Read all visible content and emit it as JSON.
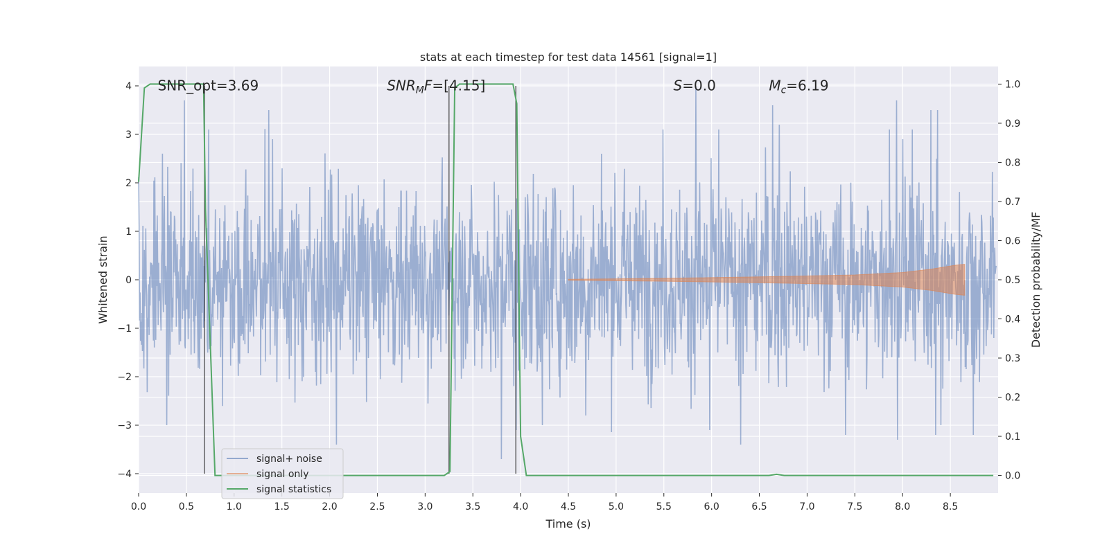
{
  "chart_data": {
    "type": "line",
    "title": "stats at each timestep for test data 14561 [signal=1]",
    "xlabel": "Time (s)",
    "ylabel": "Whitened strain",
    "y2label": "Detection probability/MF",
    "xlim": [
      0,
      9
    ],
    "ylim": [
      -4.4,
      4.4
    ],
    "y2lim": [
      -0.045,
      1.045
    ],
    "xticks": [
      "0.0",
      "0.5",
      "1.0",
      "1.5",
      "2.0",
      "2.5",
      "3.0",
      "3.5",
      "4.0",
      "4.5",
      "5.0",
      "5.5",
      "6.0",
      "6.5",
      "7.0",
      "7.5",
      "8.0",
      "8.5"
    ],
    "yticks": [
      "4",
      "3",
      "2",
      "1",
      "0",
      "−1",
      "−2",
      "−3",
      "−4"
    ],
    "y2ticks": [
      "1.0",
      "0.9",
      "0.8",
      "0.7",
      "0.6",
      "0.5",
      "0.4",
      "0.3",
      "0.2",
      "0.1",
      "0.0"
    ],
    "grid": true,
    "legend_position": "lower-left",
    "annotations": [
      {
        "name": "snr-opt",
        "text": "SNR_opt=3.69",
        "x": 0.2,
        "y": 4.05
      },
      {
        "name": "snr-mf",
        "text": "SNR_MF=[4.15]",
        "x": 2.6,
        "y": 4.05
      },
      {
        "name": "s-value",
        "text": "S=0.0",
        "x": 5.6,
        "y": 4.05
      },
      {
        "name": "chirp-mass",
        "text": "M_c=6.19",
        "x": 6.6,
        "y": 4.05
      }
    ],
    "vlines": [
      0.69,
      3.25,
      3.95
    ],
    "series": [
      {
        "name": "signal+ noise",
        "color": "#4c72b0",
        "axis": "left",
        "envelope": {
          "typical_abs": 1.6,
          "peaks_upper": [
            2.2,
            2.9,
            3.7,
            2.6,
            3.5,
            3.4,
            4.0,
            3.0,
            3.6,
            3.1,
            2.9,
            3.1,
            3.2,
            3.2
          ],
          "peaks_lower": [
            -2.8,
            -2.7,
            -3.7,
            -3.2,
            -3.4,
            -3.3,
            -3.1,
            -3.0,
            -3.4,
            -3.0,
            -3.1
          ]
        }
      },
      {
        "name": "signal only",
        "color": "#dd8452",
        "axis": "left",
        "points": [
          [
            4.5,
            0.01
          ],
          [
            5.5,
            0.03
          ],
          [
            6.5,
            0.06
          ],
          [
            7.5,
            0.1
          ],
          [
            8.0,
            0.15
          ],
          [
            8.3,
            0.22
          ],
          [
            8.55,
            0.3
          ],
          [
            8.65,
            0.32
          ],
          [
            8.65,
            0.0
          ]
        ]
      },
      {
        "name": "signal statistics",
        "color": "#55a868",
        "axis": "right",
        "points": [
          [
            0.0,
            0.75
          ],
          [
            0.06,
            0.99
          ],
          [
            0.12,
            1.0
          ],
          [
            0.68,
            1.0
          ],
          [
            0.7,
            0.68
          ],
          [
            0.8,
            0.0
          ],
          [
            3.2,
            0.0
          ],
          [
            3.26,
            0.01
          ],
          [
            3.31,
            0.99
          ],
          [
            3.36,
            1.0
          ],
          [
            3.92,
            1.0
          ],
          [
            3.96,
            0.95
          ],
          [
            4.0,
            0.1
          ],
          [
            4.06,
            0.0
          ],
          [
            6.6,
            0.0
          ],
          [
            6.68,
            0.003
          ],
          [
            6.76,
            0.0
          ],
          [
            8.95,
            0.0
          ]
        ]
      }
    ]
  }
}
